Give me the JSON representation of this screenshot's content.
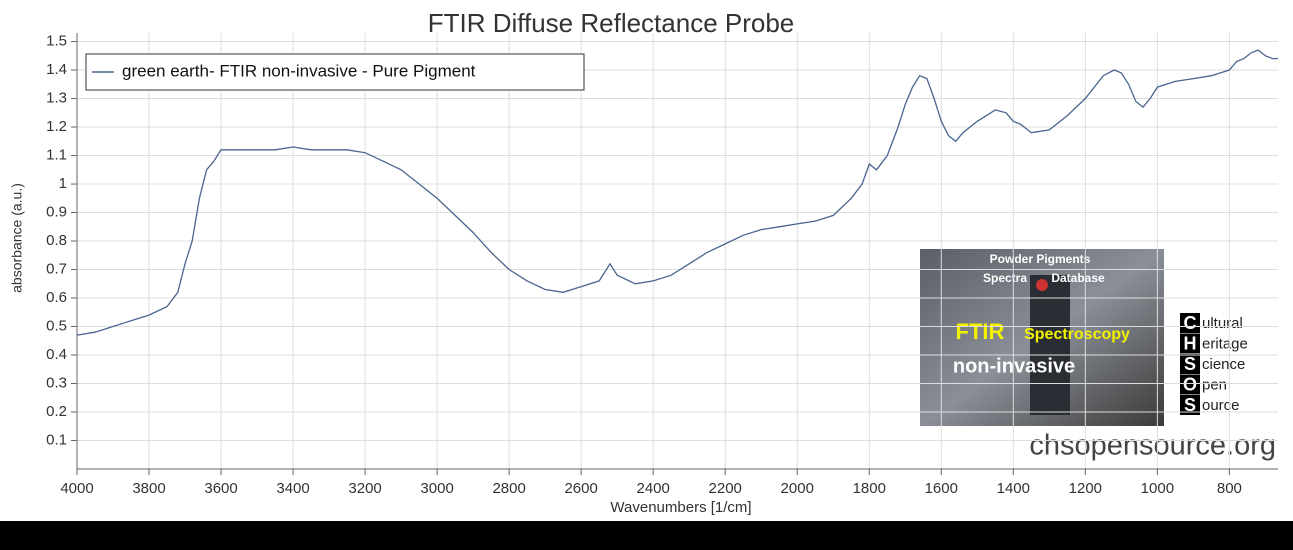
{
  "chart_data": {
    "type": "line",
    "title": "FTIR Diffuse Reflectance Probe",
    "x_label": "Wavenumbers [1/cm]",
    "y_label": "absorbance (a.u.)",
    "xlim": [
      4000,
      665
    ],
    "ylim": [
      0,
      1.53
    ],
    "xticks": [
      4000,
      3800,
      3600,
      3400,
      3200,
      3000,
      2800,
      2600,
      2400,
      2200,
      2000,
      1800,
      1600,
      1400,
      1200,
      1000,
      800
    ],
    "yticks": [
      0.1,
      0.2,
      0.3,
      0.4,
      0.5,
      0.6,
      0.7,
      0.8,
      0.9,
      1,
      1.1,
      1.2,
      1.3,
      1.4,
      1.5
    ],
    "grid": true,
    "legend": "top-left",
    "x": [
      4000,
      3950,
      3900,
      3850,
      3800,
      3750,
      3720,
      3700,
      3680,
      3660,
      3640,
      3620,
      3600,
      3550,
      3500,
      3450,
      3400,
      3350,
      3300,
      3250,
      3200,
      3150,
      3100,
      3050,
      3000,
      2950,
      2900,
      2850,
      2800,
      2750,
      2700,
      2650,
      2600,
      2550,
      2520,
      2500,
      2450,
      2400,
      2350,
      2300,
      2250,
      2200,
      2150,
      2100,
      2050,
      2000,
      1950,
      1900,
      1850,
      1820,
      1800,
      1780,
      1750,
      1720,
      1700,
      1680,
      1660,
      1640,
      1620,
      1600,
      1580,
      1560,
      1540,
      1500,
      1450,
      1420,
      1400,
      1380,
      1350,
      1300,
      1250,
      1200,
      1150,
      1120,
      1100,
      1080,
      1060,
      1040,
      1020,
      1000,
      950,
      900,
      850,
      800,
      780,
      760,
      740,
      720,
      700,
      680,
      665
    ],
    "series": [
      {
        "name": "green earth- FTIR non-invasive - Pure Pigment",
        "color": "#4a6590",
        "values": [
          0.47,
          0.48,
          0.5,
          0.52,
          0.54,
          0.57,
          0.62,
          0.72,
          0.8,
          0.95,
          1.05,
          1.08,
          1.12,
          1.12,
          1.12,
          1.12,
          1.13,
          1.12,
          1.12,
          1.12,
          1.11,
          1.08,
          1.05,
          1.0,
          0.95,
          0.89,
          0.83,
          0.76,
          0.7,
          0.66,
          0.63,
          0.62,
          0.64,
          0.66,
          0.72,
          0.68,
          0.65,
          0.66,
          0.68,
          0.72,
          0.76,
          0.79,
          0.82,
          0.84,
          0.85,
          0.86,
          0.87,
          0.89,
          0.95,
          1.0,
          1.07,
          1.05,
          1.1,
          1.2,
          1.28,
          1.34,
          1.38,
          1.37,
          1.3,
          1.22,
          1.17,
          1.15,
          1.18,
          1.22,
          1.26,
          1.25,
          1.22,
          1.21,
          1.18,
          1.19,
          1.24,
          1.3,
          1.38,
          1.4,
          1.39,
          1.35,
          1.29,
          1.27,
          1.3,
          1.34,
          1.36,
          1.37,
          1.38,
          1.4,
          1.43,
          1.44,
          1.46,
          1.47,
          1.45,
          1.44,
          1.44
        ]
      }
    ],
    "inset": {
      "lines": [
        "Powder Pigments",
        "Spectra",
        "Database",
        "FTIR",
        "Spectroscopy",
        "non-invasive"
      ],
      "letters": [
        "C",
        "H",
        "S",
        "O",
        "S"
      ],
      "words": [
        "ultural",
        "eritage",
        "cience",
        "pen",
        "ource"
      ],
      "website": "chsopensource.org"
    }
  }
}
